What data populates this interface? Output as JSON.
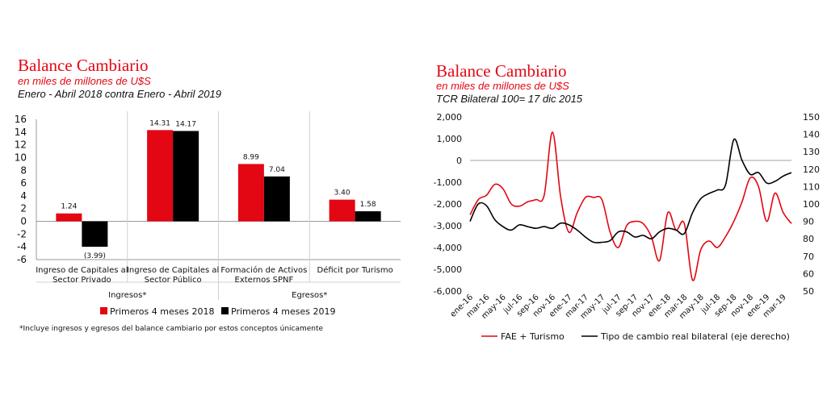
{
  "chart_data": [
    {
      "type": "bar",
      "title": "Balance Cambiario",
      "subtitle": "en miles de millones de U$S",
      "period": "Enero - Abril 2018 contra Enero - Abril 2019",
      "categories": [
        [
          "Ingreso de Capitales al",
          "Sector Privado"
        ],
        [
          "Ingreso de Capitales al",
          "Sector Público"
        ],
        [
          "Formación de Activos",
          "Externos SPNF"
        ],
        [
          "Déficit por Turismo"
        ]
      ],
      "groups": [
        {
          "label": "Ingresos*",
          "from": 0,
          "to": 1
        },
        {
          "label": "Egresos*",
          "from": 2,
          "to": 3
        }
      ],
      "series": [
        {
          "name": "Primeros 4 meses 2018",
          "color": "#e30613",
          "values": [
            1.24,
            14.31,
            8.99,
            3.4
          ],
          "labels": [
            "1.24",
            "14.31",
            "8.99",
            "3.40"
          ]
        },
        {
          "name": "Primeros 4 meses 2019",
          "color": "#000000",
          "values": [
            -3.99,
            14.17,
            7.04,
            1.58
          ],
          "labels": [
            "(3.99)",
            "14.17",
            "7.04",
            "1.58"
          ]
        }
      ],
      "yticks": [
        16,
        14,
        12,
        10,
        8,
        6,
        4,
        2,
        0,
        -2,
        -4,
        -6
      ],
      "ylim": [
        -6,
        16
      ],
      "legend": "bottom",
      "footnote": "*Incluye ingresos y egresos del balance cambiario por estos conceptos únicamente"
    },
    {
      "type": "line",
      "title": "Balance Cambiario",
      "subtitle": "en miles de millones de U$S",
      "note": "TCR Bilateral 100= 17 dic 2015",
      "x": [
        "ene-16",
        "feb-16",
        "mar-16",
        "abr-16",
        "may-16",
        "jun-16",
        "jul-16",
        "ago-16",
        "sep-16",
        "oct-16",
        "nov-16",
        "dic-16",
        "ene-17",
        "feb-17",
        "mar-17",
        "abr-17",
        "may-17",
        "jun-17",
        "jul-17",
        "ago-17",
        "sep-17",
        "oct-17",
        "nov-17",
        "dic-17",
        "ene-18",
        "feb-18",
        "mar-18",
        "abr-18",
        "may-18",
        "jun-18",
        "jul-18",
        "ago-18",
        "sep-18",
        "oct-18",
        "nov-18",
        "dic-18",
        "ene-19",
        "feb-19",
        "mar-19",
        "abr-19"
      ],
      "xticks": [
        "ene-16",
        "mar-16",
        "may-16",
        "jul-16",
        "sep-16",
        "nov-16",
        "ene-17",
        "mar-17",
        "may-17",
        "jul-17",
        "sep-17",
        "nov-17",
        "ene-18",
        "mar-18",
        "may-18",
        "jul-18",
        "sep-18",
        "nov-18",
        "ene-19",
        "mar-19"
      ],
      "series": [
        {
          "name": "FAE + Turismo",
          "axis": "left",
          "color": "#e30613",
          "values": [
            -2500,
            -1800,
            -1600,
            -1100,
            -1300,
            -2000,
            -2100,
            -1900,
            -1800,
            -1600,
            1300,
            -1700,
            -3300,
            -2400,
            -1700,
            -1700,
            -1800,
            -3300,
            -4000,
            -3000,
            -2800,
            -2900,
            -3500,
            -4600,
            -2400,
            -3200,
            -2900,
            -5500,
            -4100,
            -3700,
            -4000,
            -3500,
            -2800,
            -1900,
            -800,
            -1200,
            -2800,
            -1500,
            -2400,
            -2900
          ]
        },
        {
          "name": "Tipo de cambio real bilateral (eje derecho)",
          "axis": "right",
          "color": "#000000",
          "values": [
            90,
            100,
            99,
            91,
            87,
            85,
            88,
            87,
            86,
            87,
            86,
            89,
            88,
            85,
            81,
            78,
            78,
            79,
            84,
            84,
            81,
            82,
            80,
            84,
            86,
            85,
            83,
            95,
            103,
            106,
            108,
            111,
            137,
            125,
            117,
            118,
            112,
            113,
            116,
            118
          ]
        }
      ],
      "y_left": {
        "ticks": [
          "2,000",
          "1,000",
          "0",
          "-1,000",
          "-2,000",
          "-3,000",
          "-4,000",
          "-5,000",
          "-6,000"
        ],
        "min": -6000,
        "max": 2000
      },
      "y_right": {
        "ticks": [
          "150",
          "140",
          "130",
          "120",
          "110",
          "100",
          "90",
          "80",
          "70",
          "60",
          "50"
        ],
        "min": 50,
        "max": 150
      },
      "legend": "bottom"
    }
  ],
  "colors": {
    "accent": "#e30613",
    "gridline": "#bfbfbf"
  }
}
